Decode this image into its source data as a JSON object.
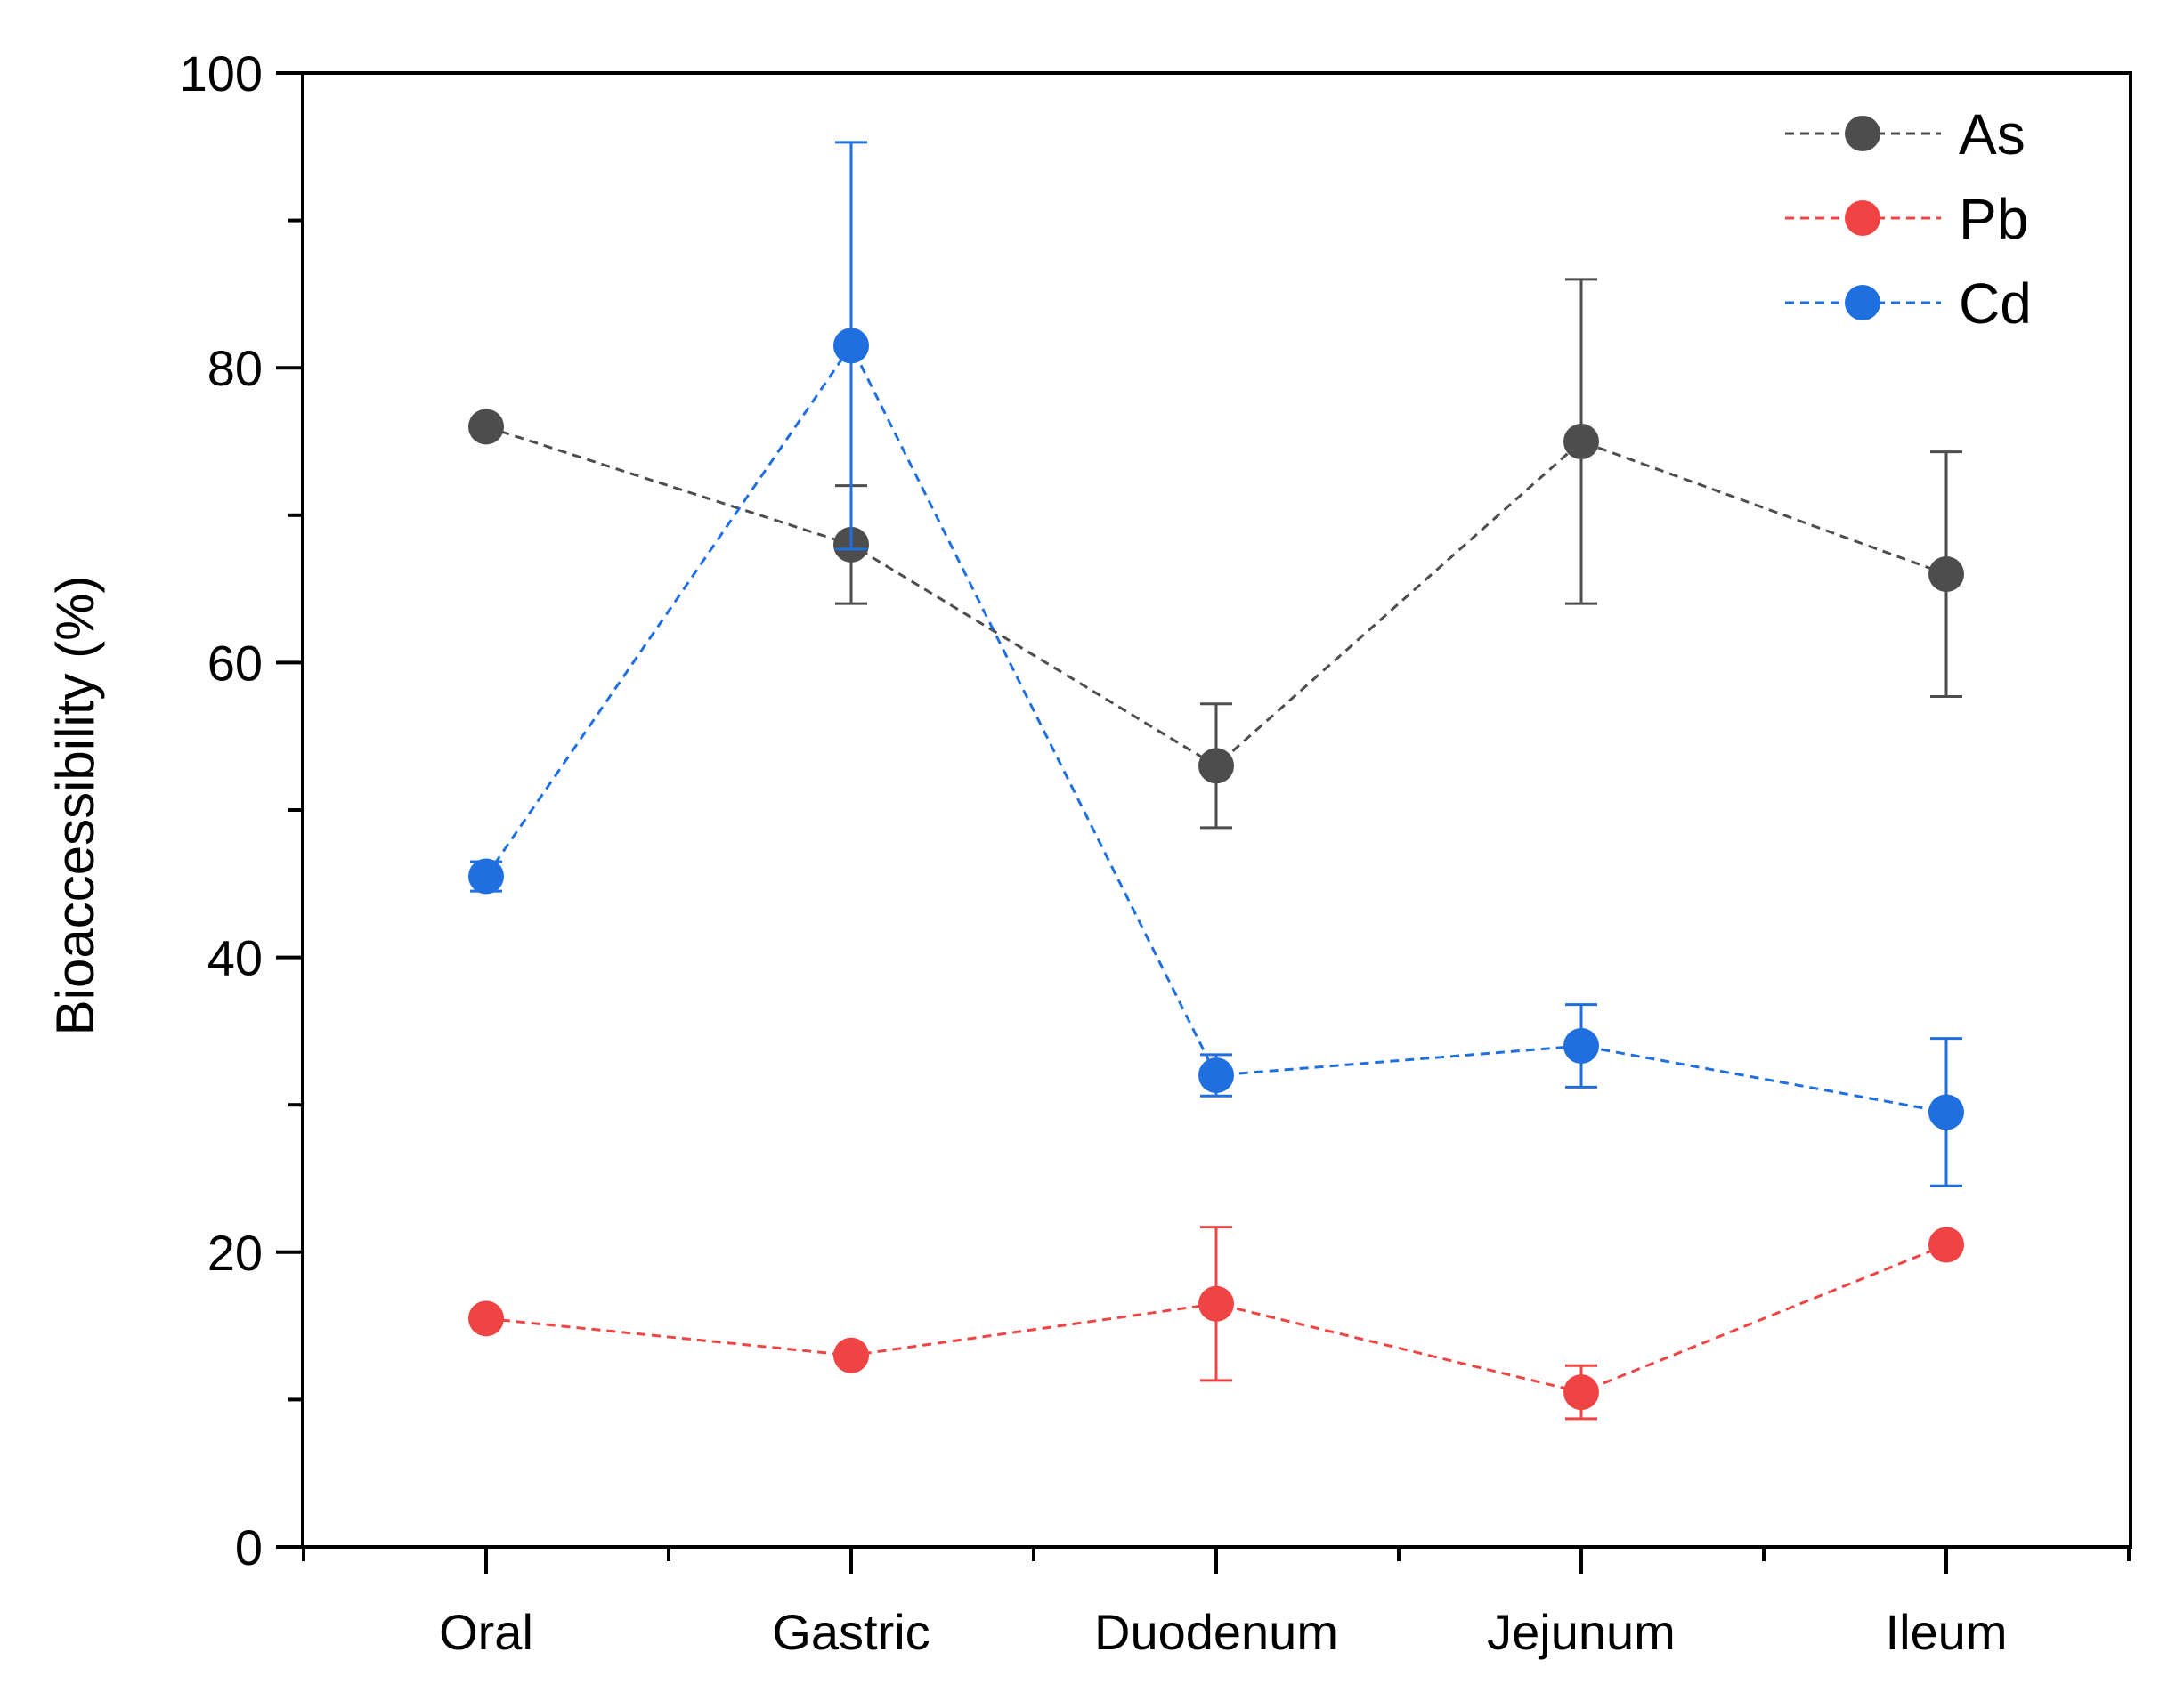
{
  "chart_data": {
    "type": "line",
    "title": "",
    "xlabel": "",
    "ylabel": "Bioaccessibility (%)",
    "ylim": [
      0,
      100
    ],
    "yticks": [
      0,
      20,
      40,
      60,
      80,
      100
    ],
    "grid": false,
    "legend_position": "top-right",
    "categories": [
      "Oral",
      "Gastric",
      "Duodenum",
      "Jejunum",
      "Ileum"
    ],
    "series": [
      {
        "name": "As",
        "color": "#4d4d4d",
        "values": [
          76,
          68,
          53,
          75,
          66
        ],
        "errors": [
          null,
          4,
          4.2,
          11,
          8.3
        ]
      },
      {
        "name": "Pb",
        "color": "#f04444",
        "values": [
          15.5,
          13,
          16.5,
          10.5,
          20.5
        ],
        "errors": [
          null,
          null,
          5.2,
          1.8,
          null
        ]
      },
      {
        "name": "Cd",
        "color": "#1f6fe0",
        "values": [
          45.5,
          81.5,
          32,
          34,
          29.5
        ],
        "errors": [
          1,
          13.8,
          1.4,
          2.8,
          5
        ]
      }
    ]
  }
}
